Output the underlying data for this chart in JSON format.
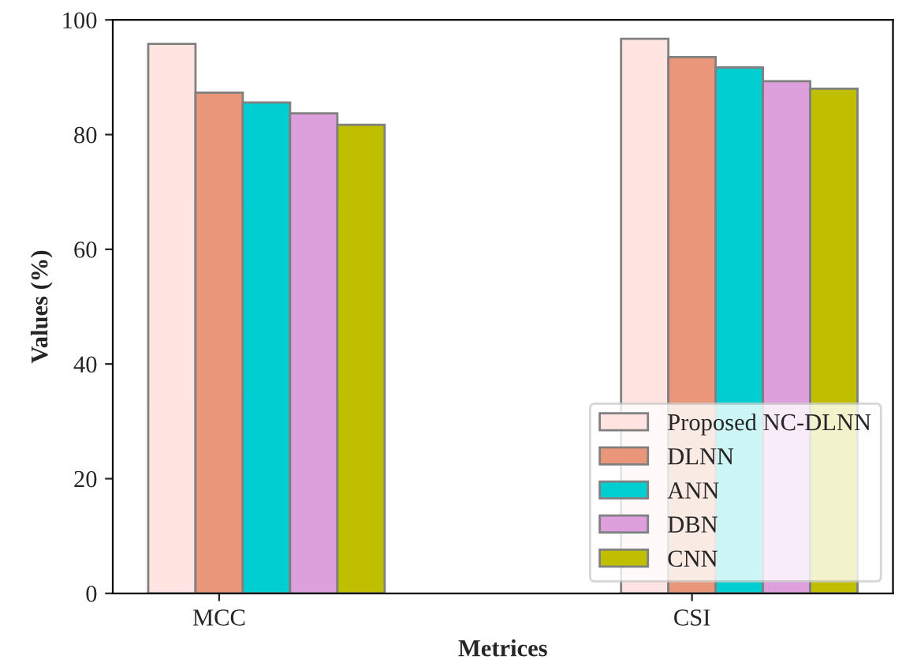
{
  "chart_data": {
    "type": "bar",
    "xlabel": "Metrices",
    "ylabel": "Values (%)",
    "categories": [
      "MCC",
      "CSI"
    ],
    "series": [
      {
        "name": "Proposed NC-DLNN",
        "color": "#ffe4e1",
        "values": [
          95.8,
          96.7
        ]
      },
      {
        "name": "DLNN",
        "color": "#e9967a",
        "values": [
          87.3,
          93.5
        ]
      },
      {
        "name": "ANN",
        "color": "#00ced1",
        "values": [
          85.6,
          91.7
        ]
      },
      {
        "name": "DBN",
        "color": "#dda0dd",
        "values": [
          83.7,
          89.3
        ]
      },
      {
        "name": "CNN",
        "color": "#bfbf00",
        "values": [
          81.7,
          88.0
        ]
      }
    ],
    "ylim": [
      0,
      100
    ],
    "yticks": [
      0,
      20,
      40,
      60,
      80,
      100
    ],
    "grid": false,
    "legend": "bottom right"
  }
}
